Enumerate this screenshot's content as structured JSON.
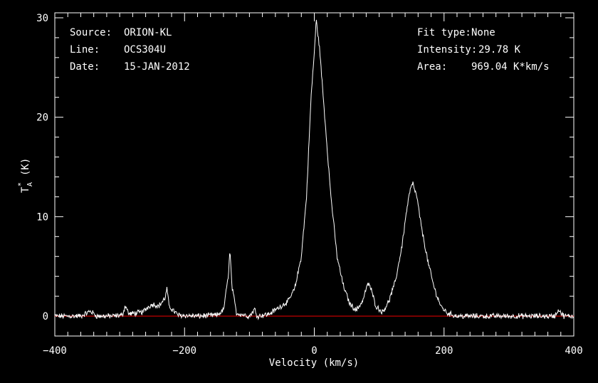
{
  "colors": {
    "background": "#000000",
    "foreground": "#ffffff",
    "baseline": "#d40000"
  },
  "info": {
    "source_label": "Source:",
    "source_value": "ORION-KL",
    "line_label": "Line:",
    "line_value": "OCS304U",
    "date_label": "Date:",
    "date_value": "15-JAN-2012",
    "fit_label": "Fit type:",
    "fit_value": "None",
    "intensity_label": "Intensity:",
    "intensity_value": "29.78 K",
    "area_label": "Area:",
    "area_value": "969.04 K*km/s"
  },
  "chart_data": {
    "type": "line",
    "xlabel": "Velocity (km/s)",
    "ylabel": "T",
    "ylabel_sub": "A",
    "ylabel_sup": "*",
    "ylabel_unit": "(K)",
    "xlim": [
      -400,
      400
    ],
    "ylim": [
      -2,
      30.5
    ],
    "x_ticks": [
      -400,
      -200,
      0,
      200,
      400
    ],
    "y_ticks": [
      0,
      10,
      20,
      30
    ],
    "baseline_y": 0,
    "series": [
      {
        "x": [
          -400,
          -360,
          -345,
          -335,
          -310,
          -296,
          -291,
          -286,
          -265,
          -255,
          -248,
          -240,
          -230,
          -227,
          -224,
          -210,
          -180,
          -150,
          -140,
          -133,
          -130,
          -127,
          -120,
          -100,
          -92,
          -88,
          -70,
          -40,
          -30,
          -20,
          -12,
          -5,
          0,
          3,
          8,
          15,
          25,
          35,
          45,
          55,
          65,
          75,
          80,
          84,
          88,
          95,
          105,
          115,
          125,
          135,
          142,
          148,
          152,
          158,
          165,
          175,
          185,
          195,
          205,
          220,
          260,
          300,
          370,
          378,
          381,
          385,
          400
        ],
        "y": [
          0,
          0,
          0.5,
          0,
          0,
          0.1,
          1.1,
          0.2,
          0.4,
          1.0,
          1.2,
          1.0,
          1.8,
          2.8,
          1.0,
          0.1,
          0,
          0.1,
          0.6,
          3.8,
          6.6,
          3.0,
          0.3,
          0,
          0.7,
          0,
          0.2,
          1.5,
          2.8,
          6.0,
          12.0,
          22.0,
          26.5,
          29.78,
          27.0,
          21.0,
          12.5,
          6.0,
          3.0,
          1.2,
          0.6,
          1.6,
          2.8,
          3.3,
          2.6,
          1.0,
          0.4,
          1.5,
          3.5,
          7.0,
          10.5,
          12.8,
          13.3,
          12.0,
          9.0,
          5.5,
          2.8,
          1.0,
          0.3,
          0,
          0,
          0,
          0,
          0.7,
          0.2,
          0,
          0
        ]
      }
    ]
  }
}
